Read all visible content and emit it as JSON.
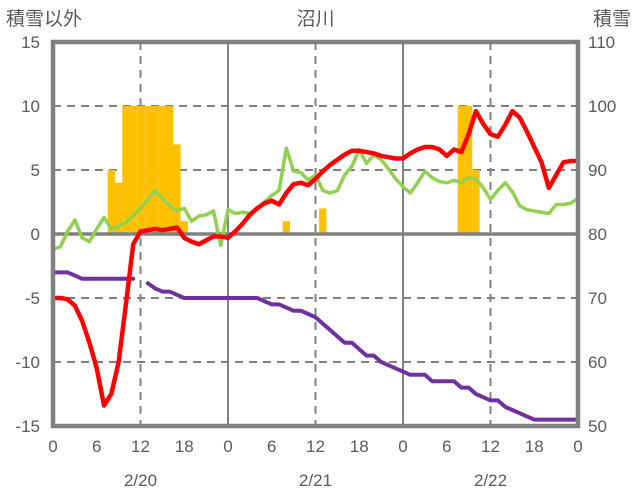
{
  "header": {
    "left_axis_title": "積雪以外",
    "chart_title": "沼川",
    "right_axis_title": "積雪"
  },
  "chart_data": {
    "type": "combo",
    "title": "沼川",
    "x": {
      "unit": "hour",
      "start": 0,
      "end": 72,
      "tick_hours": [
        0,
        6,
        12,
        18,
        24,
        30,
        36,
        42,
        48,
        54,
        60,
        66,
        72
      ],
      "tick_labels": [
        "0",
        "6",
        "12",
        "18",
        "0",
        "6",
        "12",
        "18",
        "0",
        "6",
        "12",
        "18",
        "0"
      ],
      "date_labels": [
        {
          "text": "2/20",
          "hour": 12
        },
        {
          "text": "2/21",
          "hour": 36
        },
        {
          "text": "2/22",
          "hour": 60
        }
      ],
      "solid_gridline_hours": [
        24,
        48
      ],
      "dashed_gridline_hours": [
        12,
        36,
        60
      ]
    },
    "left_axis": {
      "title": "積雪以外",
      "min": -15,
      "max": 15,
      "ticks": [
        15,
        10,
        5,
        0,
        -5,
        -10,
        -15
      ],
      "dashed_gridlines": [
        10,
        5,
        -5,
        -10
      ],
      "zero_line": 0
    },
    "right_axis": {
      "title": "積雪",
      "min": 50,
      "max": 110,
      "ticks": [
        110,
        100,
        90,
        80,
        70,
        60,
        50
      ]
    },
    "series": [
      {
        "name": "snowfall_bars",
        "type": "bar",
        "axis": "left",
        "color": "#FFC000",
        "values": [
          0,
          0,
          0,
          0,
          0,
          0,
          0,
          0,
          5,
          4,
          10,
          10,
          10,
          10,
          10,
          10,
          10,
          7,
          1,
          0,
          0,
          0,
          0,
          0,
          0,
          0,
          0,
          0,
          0,
          0,
          0,
          0,
          1,
          0,
          0,
          0,
          0,
          2,
          0,
          0,
          0,
          0,
          0,
          0,
          0,
          0,
          0,
          0,
          0,
          0,
          0,
          0,
          0,
          0,
          0,
          0,
          10,
          10,
          5,
          0,
          0,
          0,
          0,
          0,
          0,
          0,
          0,
          0,
          0,
          0,
          0,
          0,
          0
        ]
      },
      {
        "name": "snow_depth_purple",
        "type": "line",
        "axis": "right",
        "color": "#7030A0",
        "width": 4,
        "values": [
          74,
          74,
          74,
          73.5,
          73,
          73,
          73,
          73,
          73,
          73,
          73,
          73,
          null,
          72.3,
          71.5,
          71,
          71,
          70.5,
          70,
          70,
          70,
          70,
          70,
          70,
          70,
          70,
          70,
          70,
          70,
          69.5,
          69,
          69,
          68.5,
          68,
          68,
          67.5,
          67,
          66,
          65,
          64,
          63,
          63,
          62,
          61,
          61,
          60,
          59.5,
          59,
          58.5,
          58,
          58,
          58,
          57,
          57,
          57,
          57,
          56,
          56,
          55,
          54.5,
          54,
          54,
          53,
          52.5,
          52,
          51.5,
          51,
          51,
          51,
          51,
          51,
          51,
          51
        ]
      },
      {
        "name": "green_line",
        "type": "line",
        "axis": "left",
        "color": "#92D050",
        "width": 3.5,
        "values": [
          -1.2,
          -1.0,
          0.2,
          1.1,
          -0.3,
          -0.6,
          0.4,
          1.3,
          0.4,
          0.6,
          0.9,
          1.4,
          2.0,
          2.7,
          3.4,
          2.8,
          2.2,
          1.8,
          2.0,
          1.0,
          1.4,
          1.5,
          1.8,
          -0.9,
          1.9,
          1.6,
          1.7,
          1.6,
          2.0,
          2.5,
          3.0,
          3.4,
          6.7,
          4.9,
          4.8,
          4.2,
          4.6,
          3.4,
          3.2,
          3.4,
          4.6,
          5.3,
          6.6,
          5.5,
          6.2,
          5.8,
          5.1,
          4.3,
          3.7,
          3.2,
          4.0,
          4.9,
          4.4,
          4.1,
          4.0,
          4.2,
          4.0,
          4.4,
          4.3,
          3.6,
          2.7,
          3.4,
          4.0,
          3.3,
          2.2,
          1.9,
          1.8,
          1.7,
          1.6,
          2.3,
          2.3,
          2.4,
          2.8
        ]
      },
      {
        "name": "red_line",
        "type": "line",
        "axis": "left",
        "color": "#FF0000",
        "width": 4.5,
        "values": [
          -5.0,
          -5.0,
          -5.1,
          -5.6,
          -6.8,
          -8.5,
          -10.5,
          -13.4,
          -12.5,
          -10.0,
          -5.5,
          -0.8,
          0.2,
          0.3,
          0.4,
          0.3,
          0.4,
          0.5,
          -0.3,
          -0.6,
          -0.8,
          -0.5,
          -0.2,
          -0.2,
          -0.3,
          0.2,
          0.8,
          1.5,
          2.0,
          2.4,
          2.6,
          2.3,
          3.2,
          3.9,
          4.0,
          3.8,
          4.3,
          4.9,
          5.4,
          5.8,
          6.2,
          6.5,
          6.5,
          6.4,
          6.3,
          6.1,
          6.0,
          5.9,
          5.9,
          6.3,
          6.6,
          6.8,
          6.8,
          6.6,
          6.1,
          6.6,
          6.4,
          7.8,
          9.6,
          8.6,
          7.8,
          7.6,
          8.5,
          9.6,
          9.1,
          8.0,
          6.8,
          5.6,
          3.6,
          4.6,
          5.6,
          5.7,
          5.7
        ]
      }
    ],
    "colors": {
      "grid": "#808080",
      "frame": "#808080",
      "zero_line": "#808080",
      "text": "#595959"
    },
    "grid": {
      "horizontal": "dashed",
      "vertical_12h": "dashed",
      "vertical_day": "solid"
    },
    "legend": "none"
  }
}
